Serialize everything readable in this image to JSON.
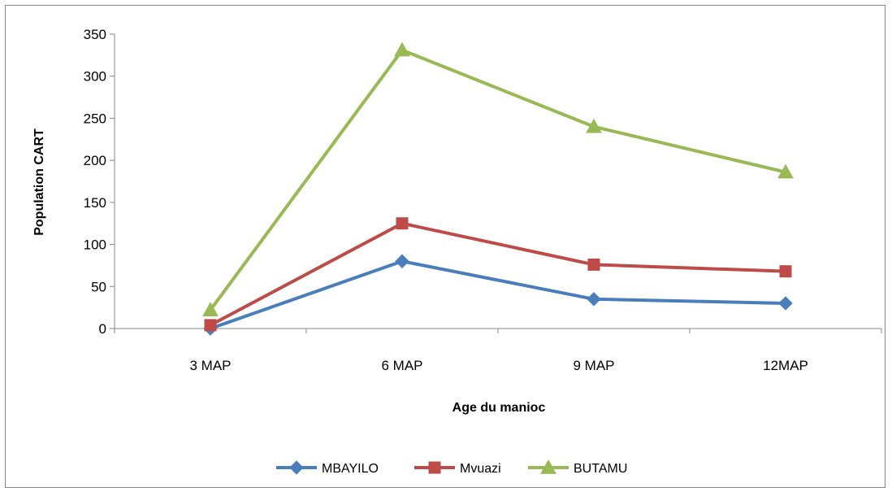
{
  "chart_data": {
    "type": "line",
    "title": "",
    "xlabel": "Age du manioc",
    "ylabel": "Population CART",
    "categories": [
      "3 MAP",
      "6 MAP",
      "9 MAP",
      "12MAP"
    ],
    "ylim": [
      0,
      350
    ],
    "yticks": [
      0,
      50,
      100,
      150,
      200,
      250,
      300,
      350
    ],
    "grid": false,
    "legend_position": "bottom",
    "series": [
      {
        "name": "MBAYILO",
        "values": [
          0,
          80,
          35,
          30
        ],
        "color": "#4a7ebb",
        "marker": "diamond"
      },
      {
        "name": "Mvuazi",
        "values": [
          4,
          125,
          76,
          68
        ],
        "color": "#be4b48",
        "marker": "square"
      },
      {
        "name": "BUTAMU",
        "values": [
          22,
          331,
          240,
          186
        ],
        "color": "#98b954",
        "marker": "triangle"
      }
    ]
  }
}
